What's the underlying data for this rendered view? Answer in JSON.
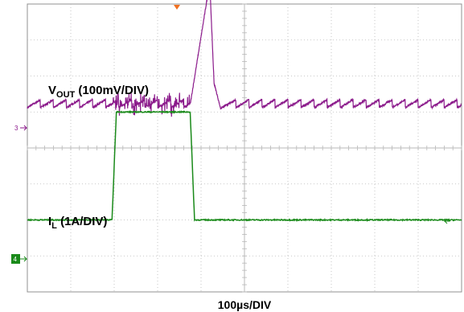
{
  "chart_data": {
    "type": "line",
    "title": "",
    "xlabel": "100µs/DIV",
    "x_divisions": 10,
    "y_divisions": 8,
    "grid": true,
    "colors": {
      "grid": "#b8b8b8",
      "frame": "#909090",
      "vout": "#8b1a8b",
      "il": "#1a8a1a",
      "ch4_marker_bg": "#1a8a1a",
      "trigger_marker": "#f07020"
    },
    "series": [
      {
        "name_main": "V",
        "name_sub": "OUT",
        "name_rest": " (100mV/DIV)",
        "channel": "3",
        "ground_div": 5.2,
        "events": [
          {
            "t": 0.0,
            "dv": 0.0
          },
          {
            "t": 3.75,
            "dv": 0.0
          },
          {
            "t": 4.2,
            "dv": 3.4
          },
          {
            "t": 4.3,
            "dv": 0.6
          },
          {
            "t": 4.45,
            "dv": -0.1
          },
          {
            "t": 4.6,
            "dv": 0.0
          },
          {
            "t": 10.0,
            "dv": 0.0
          }
        ],
        "noise_window": [
          1.95,
          3.75
        ]
      },
      {
        "name_main": "I",
        "name_sub": "L",
        "name_rest": " (1A/DIV)",
        "channel": "4",
        "ground_div": 2.0,
        "levels": [
          {
            "t": 0.0,
            "div": 0.0
          },
          {
            "t": 1.95,
            "div": 0.0
          },
          {
            "t": 2.05,
            "div": 3.0
          },
          {
            "t": 3.75,
            "div": 3.0
          },
          {
            "t": 3.85,
            "div": 0.0
          },
          {
            "t": 10.0,
            "div": 0.0
          }
        ]
      }
    ]
  }
}
